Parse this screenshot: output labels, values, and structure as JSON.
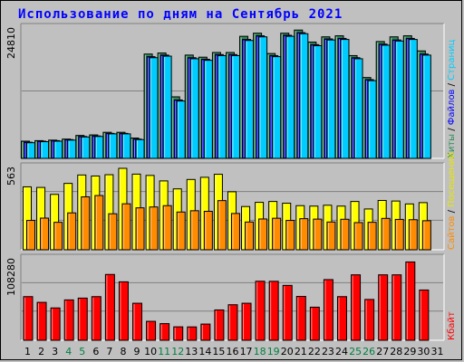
{
  "title": "Использование по дням на Сентябрь 2021",
  "chart_data": [
    {
      "type": "bar",
      "name": "top",
      "ymax_label": "24810",
      "ylim": [
        0,
        24810
      ],
      "categories": [
        "1",
        "2",
        "3",
        "4",
        "5",
        "6",
        "7",
        "8",
        "9",
        "10",
        "11",
        "12",
        "13",
        "14",
        "15",
        "16",
        "17",
        "18",
        "19",
        "20",
        "21",
        "22",
        "23",
        "24",
        "25",
        "26",
        "27",
        "28",
        "29",
        "30",
        "31"
      ],
      "series": [
        {
          "name": "Хиты",
          "color": "#2e8b57",
          "values": [
            3300,
            3400,
            3500,
            3700,
            4400,
            4500,
            5000,
            5000,
            3900,
            20000,
            20200,
            11800,
            19800,
            19400,
            20300,
            20300,
            23400,
            24000,
            20100,
            24000,
            24600,
            22300,
            23300,
            23500,
            19700,
            15500,
            22400,
            23300,
            23500,
            20600,
            0
          ]
        },
        {
          "name": "Файлов",
          "color": "#0000ff",
          "values": [
            3100,
            3300,
            3400,
            3600,
            4200,
            4300,
            4800,
            4800,
            3700,
            19500,
            19800,
            11200,
            19300,
            19000,
            19900,
            19900,
            22800,
            23500,
            19700,
            23600,
            24100,
            21800,
            22900,
            23000,
            19300,
            15100,
            21900,
            22700,
            23000,
            20000,
            0
          ]
        },
        {
          "name": "Страниц",
          "color": "#00ccff",
          "values": [
            3000,
            3200,
            3300,
            3500,
            4100,
            4200,
            4700,
            4700,
            3600,
            19300,
            19600,
            11000,
            19100,
            18800,
            19700,
            19700,
            22600,
            23300,
            19500,
            23400,
            23900,
            21600,
            22700,
            22800,
            19100,
            14900,
            21700,
            22500,
            22800,
            19800,
            0
          ]
        }
      ],
      "side_labels": [
        {
          "text": "Хиты",
          "color": "#2e8b57"
        },
        {
          "text": "Файлов",
          "color": "#0000ff"
        },
        {
          "text": "Страниц",
          "color": "#00ccff"
        }
      ]
    },
    {
      "type": "bar",
      "name": "middle",
      "ymax_label": "563",
      "ylim": [
        0,
        563
      ],
      "categories": [
        "1",
        "2",
        "3",
        "4",
        "5",
        "6",
        "7",
        "8",
        "9",
        "10",
        "11",
        "12",
        "13",
        "14",
        "15",
        "16",
        "17",
        "18",
        "19",
        "20",
        "21",
        "22",
        "23",
        "24",
        "25",
        "26",
        "27",
        "28",
        "29",
        "30",
        "31"
      ],
      "series": [
        {
          "name": "Посещений",
          "color": "#ffff00",
          "values": [
            435,
            431,
            383,
            459,
            517,
            510,
            519,
            563,
            523,
            514,
            476,
            421,
            486,
            501,
            522,
            401,
            299,
            328,
            334,
            322,
            305,
            302,
            308,
            302,
            334,
            282,
            341,
            337,
            317,
            326,
            0
          ]
        },
        {
          "name": "Сайтов",
          "color": "#ff8c00",
          "values": [
            203,
            219,
            190,
            255,
            366,
            375,
            249,
            318,
            290,
            296,
            305,
            261,
            270,
            266,
            340,
            251,
            192,
            213,
            218,
            203,
            215,
            212,
            192,
            211,
            188,
            190,
            217,
            210,
            208,
            201,
            0
          ]
        }
      ],
      "side_labels": [
        {
          "text": "Сайтов",
          "color": "#ff8c00"
        },
        {
          "text": "Посещений",
          "color": "#e6e600"
        }
      ]
    },
    {
      "type": "bar",
      "name": "bottom",
      "ymax_label": "108280",
      "ylim": [
        0,
        108280
      ],
      "categories": [
        "1",
        "2",
        "3",
        "4",
        "5",
        "6",
        "7",
        "8",
        "9",
        "10",
        "11",
        "12",
        "13",
        "14",
        "15",
        "16",
        "17",
        "18",
        "19",
        "20",
        "21",
        "22",
        "23",
        "24",
        "25",
        "26",
        "27",
        "28",
        "29",
        "30",
        "31"
      ],
      "series": [
        {
          "name": "Кбайт",
          "color": "#ff0000",
          "values": [
            58700,
            51000,
            43500,
            54300,
            56700,
            58700,
            88500,
            78600,
            49800,
            25500,
            22400,
            18100,
            18000,
            21800,
            40800,
            47800,
            49800,
            79400,
            79300,
            73800,
            59000,
            44500,
            81600,
            58700,
            88000,
            54900,
            88000,
            88000,
            105300,
            67600,
            0
          ]
        }
      ],
      "side_labels": [
        {
          "text": "Кбайт",
          "color": "#ff0000"
        }
      ]
    }
  ],
  "day_labels": [
    "1",
    "2",
    "3",
    "4",
    "5",
    "6",
    "7",
    "8",
    "9",
    "10",
    "11",
    "12",
    "13",
    "14",
    "15",
    "16",
    "17",
    "18",
    "19",
    "20",
    "21",
    "22",
    "23",
    "24",
    "25",
    "26",
    "27",
    "28",
    "29",
    "30",
    "31"
  ],
  "weekend_days": [
    "4",
    "5",
    "11",
    "12",
    "18",
    "19",
    "25",
    "26"
  ],
  "colors": {
    "weekday": "#000000",
    "weekend": "#008040",
    "sep": "#000000"
  }
}
